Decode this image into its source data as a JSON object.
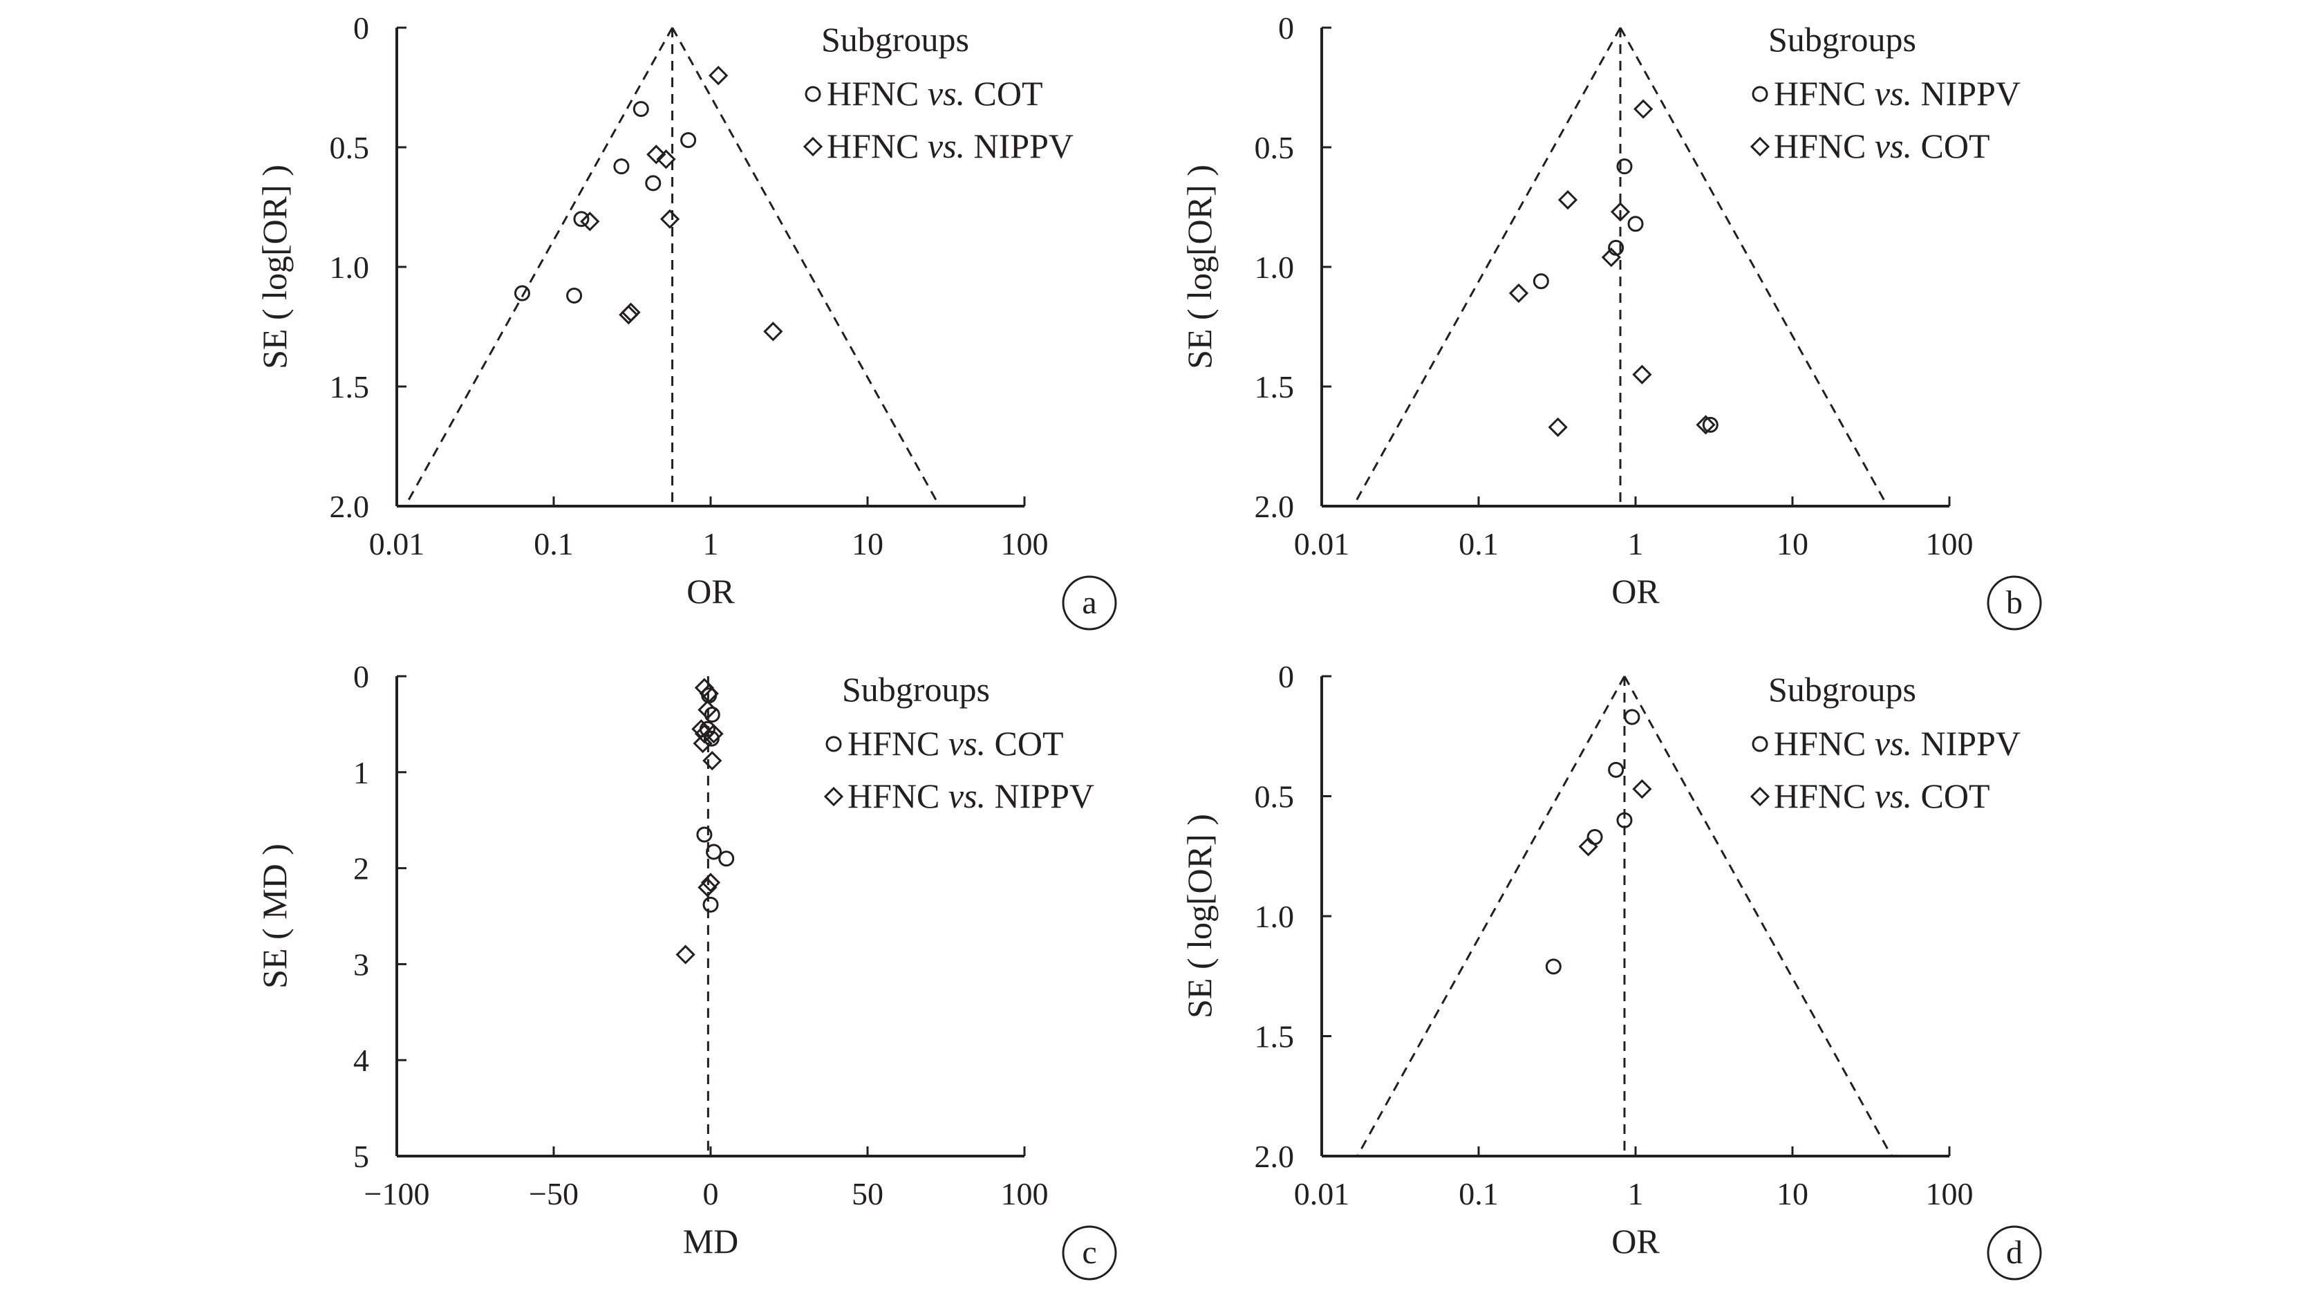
{
  "legend_title": "Subgroups",
  "chart_data": [
    {
      "type": "scatter",
      "panel_label": "a",
      "x_scale": "log",
      "xlabel": "OR",
      "ylabel": "SE ( log[OR] )",
      "xlim": [
        0.01,
        100
      ],
      "ylim": [
        0,
        2.0
      ],
      "y_inverted": true,
      "x_ticks": [
        "0.01",
        "0.1",
        "1",
        "10",
        "100"
      ],
      "y_ticks": [
        "0",
        "0.5",
        "1.0",
        "1.5",
        "2.0"
      ],
      "legend_placement": "top-right",
      "pooled_estimate": 0.57,
      "funnel_lines": true,
      "series": [
        {
          "name": "HFNC vs. COT",
          "marker": "circle",
          "points": [
            [
              0.36,
              0.34
            ],
            [
              0.72,
              0.47
            ],
            [
              0.27,
              0.58
            ],
            [
              0.43,
              0.65
            ],
            [
              0.15,
              0.8
            ],
            [
              0.063,
              1.11
            ],
            [
              0.135,
              1.12
            ]
          ]
        },
        {
          "name": "HFNC vs. NIPPV",
          "marker": "diamond",
          "points": [
            [
              1.12,
              0.2
            ],
            [
              0.45,
              0.53
            ],
            [
              0.52,
              0.55
            ],
            [
              0.55,
              0.8
            ],
            [
              0.17,
              0.81
            ],
            [
              0.31,
              1.19
            ],
            [
              0.3,
              1.2
            ],
            [
              2.5,
              1.27
            ]
          ]
        }
      ]
    },
    {
      "type": "scatter",
      "panel_label": "b",
      "x_scale": "log",
      "xlabel": "OR",
      "ylabel": "SE ( log[OR] )",
      "xlim": [
        0.01,
        100
      ],
      "ylim": [
        0,
        2.0
      ],
      "y_inverted": true,
      "x_ticks": [
        "0.01",
        "0.1",
        "1",
        "10",
        "100"
      ],
      "y_ticks": [
        "0",
        "0.5",
        "1.0",
        "1.5",
        "2.0"
      ],
      "legend_placement": "top-right",
      "pooled_estimate": 0.8,
      "funnel_lines": true,
      "series": [
        {
          "name": "HFNC vs. NIPPV",
          "marker": "circle",
          "points": [
            [
              0.85,
              0.58
            ],
            [
              1.0,
              0.82
            ],
            [
              0.75,
              0.92
            ],
            [
              0.25,
              1.06
            ],
            [
              3.0,
              1.66
            ]
          ]
        },
        {
          "name": "HFNC vs. COT",
          "marker": "diamond",
          "points": [
            [
              1.12,
              0.34
            ],
            [
              0.37,
              0.72
            ],
            [
              0.8,
              0.77
            ],
            [
              0.7,
              0.96
            ],
            [
              0.18,
              1.11
            ],
            [
              1.1,
              1.45
            ],
            [
              0.32,
              1.67
            ],
            [
              2.8,
              1.66
            ]
          ]
        }
      ]
    },
    {
      "type": "scatter",
      "panel_label": "c",
      "x_scale": "linear",
      "xlabel": "MD",
      "ylabel": "SE ( MD )",
      "xlim": [
        -100,
        100
      ],
      "ylim": [
        0,
        5
      ],
      "y_inverted": true,
      "x_ticks": [
        "−100",
        "−50",
        "0",
        "50",
        "100"
      ],
      "y_ticks": [
        "0",
        "1",
        "2",
        "3",
        "4",
        "5"
      ],
      "legend_placement": "top-right",
      "pooled_estimate": -0.8,
      "funnel_lines": false,
      "series": [
        {
          "name": "HFNC vs. COT",
          "marker": "circle",
          "points": [
            [
              -0.5,
              0.2
            ],
            [
              0.5,
              0.4
            ],
            [
              -1,
              0.55
            ],
            [
              0.3,
              0.65
            ],
            [
              -2,
              1.65
            ],
            [
              1,
              1.83
            ],
            [
              5,
              1.9
            ],
            [
              0,
              2.38
            ]
          ]
        },
        {
          "name": "HFNC vs. NIPPV",
          "marker": "diamond",
          "points": [
            [
              -2,
              0.12
            ],
            [
              -0.5,
              0.18
            ],
            [
              -1,
              0.35
            ],
            [
              -3,
              0.55
            ],
            [
              -2,
              0.6
            ],
            [
              1,
              0.6
            ],
            [
              -2.5,
              0.7
            ],
            [
              0.5,
              0.88
            ],
            [
              0,
              2.15
            ],
            [
              -1,
              2.2
            ],
            [
              -8,
              2.9
            ]
          ]
        }
      ]
    },
    {
      "type": "scatter",
      "panel_label": "d",
      "x_scale": "log",
      "xlabel": "OR",
      "ylabel": "SE ( log[OR] )",
      "xlim": [
        0.01,
        100
      ],
      "ylim": [
        0,
        2.0
      ],
      "y_inverted": true,
      "x_ticks": [
        "0.01",
        "0.1",
        "1",
        "10",
        "100"
      ],
      "y_ticks": [
        "0",
        "0.5",
        "1.0",
        "1.5",
        "2.0"
      ],
      "legend_placement": "top-right",
      "pooled_estimate": 0.85,
      "funnel_lines": true,
      "series": [
        {
          "name": "HFNC vs. NIPPV",
          "marker": "circle",
          "points": [
            [
              0.95,
              0.17
            ],
            [
              0.75,
              0.39
            ],
            [
              0.85,
              0.6
            ],
            [
              0.55,
              0.67
            ],
            [
              0.3,
              1.21
            ]
          ]
        },
        {
          "name": "HFNC vs. COT",
          "marker": "diamond",
          "points": [
            [
              1.1,
              0.47
            ],
            [
              0.5,
              0.71
            ]
          ]
        }
      ]
    }
  ]
}
